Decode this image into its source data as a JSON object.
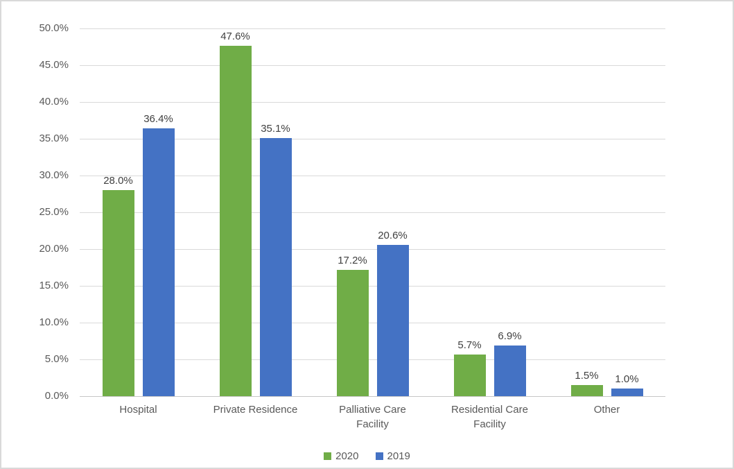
{
  "chart_data": {
    "type": "bar",
    "categories": [
      "Hospital",
      "Private Residence",
      "Palliative Care Facility",
      "Residential Care Facility",
      "Other"
    ],
    "series": [
      {
        "name": "2020",
        "color": "#70AD47",
        "values": [
          28.0,
          47.6,
          17.2,
          5.7,
          1.5
        ]
      },
      {
        "name": "2019",
        "color": "#4472C4",
        "values": [
          36.4,
          35.1,
          20.6,
          6.9,
          1.0
        ]
      }
    ],
    "data_labels": [
      [
        "28.0%",
        "47.6%",
        "17.2%",
        "5.7%",
        "1.5%"
      ],
      [
        "36.4%",
        "35.1%",
        "20.6%",
        "6.9%",
        "1.0%"
      ]
    ],
    "yticks": [
      "0.0%",
      "5.0%",
      "10.0%",
      "15.0%",
      "20.0%",
      "25.0%",
      "30.0%",
      "35.0%",
      "40.0%",
      "45.0%",
      "50.0%"
    ],
    "ylim": [
      0,
      50
    ],
    "grid": true,
    "legend_position": "bottom",
    "title": ""
  },
  "colors": {
    "gridline": "#d9d9d9",
    "axis_line": "#c6c6c6",
    "tick_label": "#595959",
    "category_label": "#595959",
    "data_label": "#404040",
    "legend_label": "#595959",
    "border": "#d9d9d9",
    "background": "#ffffff"
  }
}
